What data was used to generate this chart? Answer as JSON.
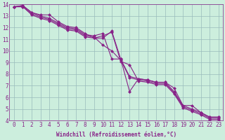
{
  "title": "",
  "xlabel": "Windchill (Refroidissement éolien,°C)",
  "ylabel": "",
  "bg_color": "#cceedd",
  "line_color": "#882288",
  "grid_color": "#99bbbb",
  "xlim": [
    -0.5,
    23.5
  ],
  "ylim": [
    4,
    14
  ],
  "xticks": [
    0,
    1,
    2,
    3,
    4,
    5,
    6,
    7,
    8,
    9,
    10,
    11,
    12,
    13,
    14,
    15,
    16,
    17,
    18,
    19,
    20,
    21,
    22,
    23
  ],
  "yticks": [
    4,
    5,
    6,
    7,
    8,
    9,
    10,
    11,
    12,
    13,
    14
  ],
  "series": [
    [
      13.8,
      13.9,
      13.3,
      13.1,
      13.1,
      12.5,
      12.1,
      12.0,
      11.5,
      11.1,
      11.1,
      11.7,
      9.3,
      6.5,
      7.6,
      7.5,
      7.3,
      7.3,
      6.8,
      5.3,
      5.3,
      4.7,
      4.3,
      4.3
    ],
    [
      13.8,
      13.9,
      13.3,
      13.0,
      12.8,
      12.4,
      12.0,
      11.9,
      11.4,
      11.3,
      11.5,
      9.3,
      9.3,
      7.8,
      7.6,
      7.5,
      7.3,
      7.3,
      6.5,
      5.3,
      5.0,
      4.7,
      4.3,
      4.3
    ],
    [
      13.8,
      13.8,
      13.2,
      12.9,
      12.7,
      12.3,
      11.9,
      11.8,
      11.3,
      11.2,
      10.5,
      10.0,
      9.2,
      7.7,
      7.5,
      7.4,
      7.2,
      7.2,
      6.4,
      5.2,
      4.9,
      4.6,
      4.2,
      4.2
    ],
    [
      13.8,
      13.8,
      13.1,
      12.8,
      12.6,
      12.2,
      11.8,
      11.7,
      11.2,
      11.1,
      11.3,
      11.6,
      9.1,
      8.8,
      7.4,
      7.3,
      7.1,
      7.1,
      6.3,
      5.1,
      4.8,
      4.5,
      4.1,
      4.1
    ]
  ],
  "marker": "D",
  "markersize": 2,
  "linewidth": 0.8,
  "xlabel_fontsize": 5.5,
  "tick_fontsize": 5.5
}
